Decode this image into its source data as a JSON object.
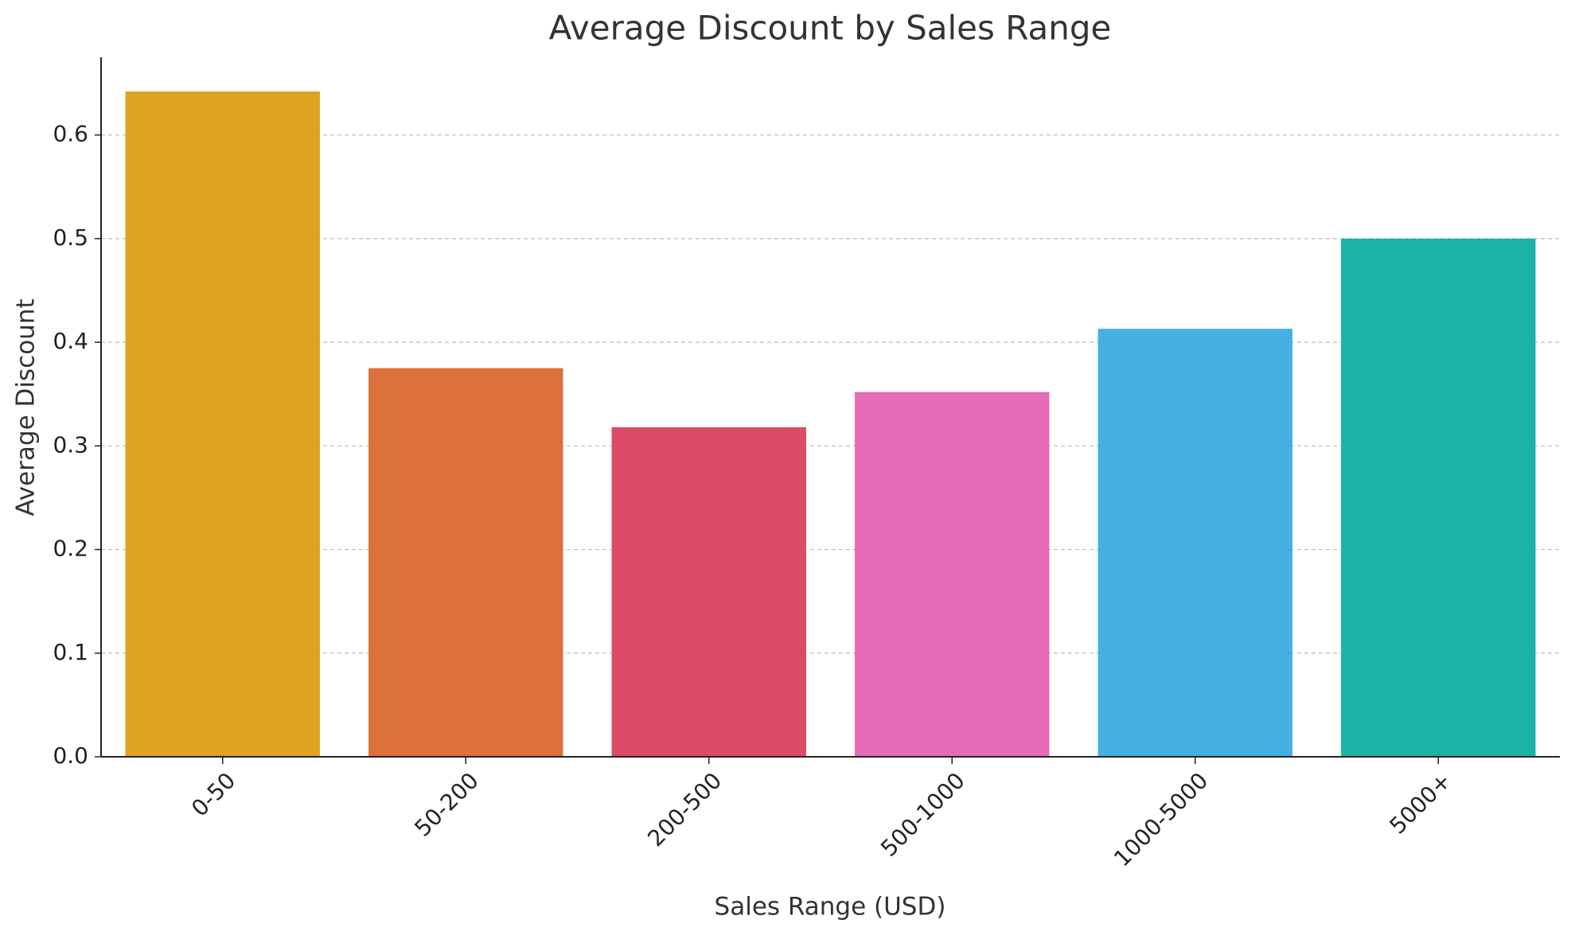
{
  "chart_data": {
    "type": "bar",
    "title": "Average Discount by Sales Range",
    "x_label": "Sales Range (USD)",
    "y_label": "Average Discount",
    "categories": [
      "0-50",
      "50-200",
      "200-500",
      "500-1000",
      "1000-5000",
      "5000+"
    ],
    "values": [
      0.642,
      0.375,
      0.318,
      0.352,
      0.413,
      0.5
    ],
    "colors": [
      "#dea320",
      "#db713b",
      "#dc4a66",
      "#e46bb8",
      "#45b1e1",
      "#1bb3a8"
    ],
    "ylim": [
      0,
      0.675
    ],
    "yticks": [
      {
        "value": 0,
        "label": "0.0"
      },
      0.1,
      0.2,
      0.3,
      0.4,
      0.5,
      0.6
    ],
    "grid": true
  }
}
